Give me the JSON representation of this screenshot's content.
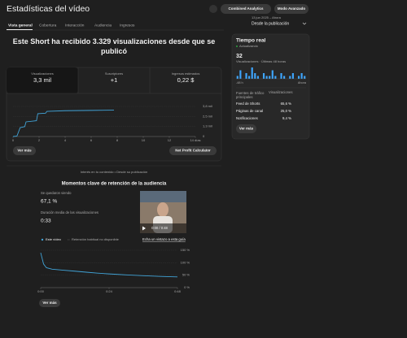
{
  "header": {
    "title": "Estadísticas del vídeo",
    "buttons": [
      "Combined Analytics",
      "Modo Avanzado"
    ],
    "date_range": "13 jun 2025 – Ahora",
    "period": "Desde la publicación"
  },
  "tabs": [
    "Vista general",
    "Cobertura",
    "Interacción",
    "Audiencia",
    "Ingresos"
  ],
  "summary": {
    "headline": "Este Short ha recibido 3.329 visualizaciones desde que se publicó",
    "metrics": [
      {
        "label": "Visualizaciones",
        "value": "3,3 mil"
      },
      {
        "label": "Suscriptores",
        "value": "+1"
      },
      {
        "label": "Ingresos estimados",
        "value": "0,22 $"
      }
    ],
    "buttons": [
      "Ver más",
      "Net Profit Calculator"
    ]
  },
  "realtime": {
    "title": "Tiempo real",
    "status": "Actualizando",
    "count": "32",
    "subtitle": "Visualizaciones · Últimas 48 horas",
    "traffic_header": [
      "Fuentes de tráfico principales",
      "Visualizaciones"
    ],
    "traffic_rows": [
      [
        "Feed de Shorts",
        "65,6 %"
      ],
      [
        "Páginas de canal",
        "25,0 %"
      ],
      [
        "Notificaciones",
        "9,4 %"
      ]
    ],
    "button": "Ver más"
  },
  "retention": {
    "interest": "Interés en tu contenido • Desde su publicación",
    "title": "Momentos clave de retención de la audiencia",
    "stats": [
      {
        "label": "Se quedaron viendo",
        "value": "67,1 %"
      },
      {
        "label": "Duración media de las visualizaciones",
        "value": "0:33"
      }
    ],
    "video_time": "0:00 / 0:48",
    "guide": "Echa un vistazo a esta guía",
    "button": "Ver más"
  },
  "chart_data": [
    {
      "type": "line",
      "color": "#41a4d8",
      "x": [
        0,
        0.3,
        0.55,
        0.9,
        1.0,
        1.8,
        1.9,
        2.5,
        2.6,
        4,
        6,
        7.75
      ],
      "values": [
        0,
        50,
        1130,
        1250,
        1850,
        2000,
        2880,
        2950,
        3180,
        3260,
        3300,
        3329
      ],
      "xlim": [
        0,
        14
      ],
      "xticks": [
        0,
        2,
        4,
        6,
        8,
        10,
        12,
        {
          "value": 14,
          "label": "14 días"
        }
      ],
      "ylim": [
        0,
        3800
      ],
      "yticks": [
        0,
        {
          "value": 1300,
          "label": "1,3 mil"
        },
        {
          "value": 2500,
          "label": "2,5 mil"
        },
        {
          "value": 3800,
          "label": "3,8 mil"
        }
      ],
      "grid": true
    },
    {
      "type": "bar",
      "color": "#3ea6ff",
      "categories": [
        "-48 h",
        null,
        null,
        null,
        null,
        null,
        null,
        null,
        null,
        null,
        null,
        null,
        null,
        null,
        null,
        null,
        null,
        null,
        null,
        null,
        null,
        null,
        null,
        "Ahora"
      ],
      "values": [
        1,
        3,
        0,
        2,
        1,
        4,
        2,
        1,
        0,
        2,
        1,
        1,
        3,
        1,
        0,
        2,
        1,
        0,
        1,
        2,
        0,
        1,
        2,
        1
      ]
    },
    {
      "type": "line",
      "unavailable_series": "Retención habitual no disponible",
      "x": [
        0,
        1,
        2,
        4,
        8,
        12,
        16,
        20,
        24,
        30,
        36,
        42,
        48
      ],
      "series": [
        {
          "name": "Este vídeo",
          "color": "#41a4d8",
          "values": [
            140,
            95,
            80,
            74,
            70,
            66,
            62,
            58,
            55,
            51,
            48,
            45,
            43
          ]
        }
      ],
      "xlim": [
        0,
        48
      ],
      "xticks": [
        {
          "value": 0,
          "label": "0:00"
        },
        {
          "value": 24,
          "label": "0:24"
        },
        {
          "value": 48,
          "label": "0:48"
        }
      ],
      "ylim": [
        0,
        150
      ],
      "yticks": [
        {
          "value": 0,
          "label": "0 %"
        },
        {
          "value": 50,
          "label": "50 %"
        },
        {
          "value": 100,
          "label": "100 %"
        },
        {
          "value": 150,
          "label": "150 %"
        }
      ],
      "grid": true
    }
  ]
}
